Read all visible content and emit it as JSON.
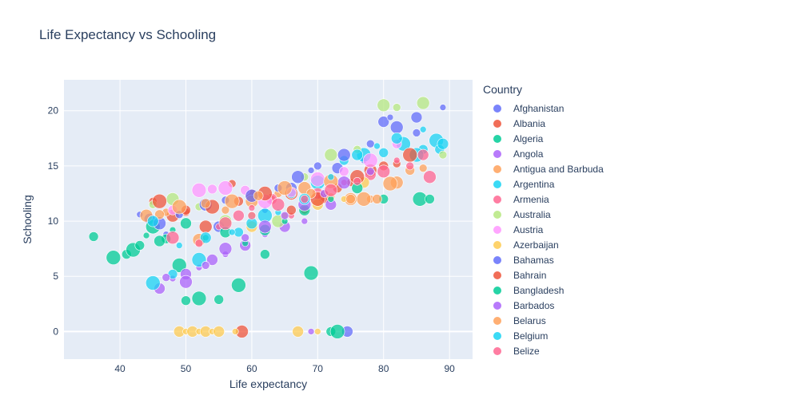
{
  "chart_data": {
    "type": "scatter",
    "title": "Life Expectancy vs Schooling",
    "xlabel": "Life expectancy",
    "ylabel": "Schooling",
    "xlim": [
      31.5,
      93.5
    ],
    "ylim": [
      -2.5,
      22.8
    ],
    "xticks": [
      40,
      50,
      60,
      70,
      80,
      90
    ],
    "yticks": [
      0,
      5,
      10,
      15,
      20
    ],
    "grid": true,
    "legend_title": "Country",
    "legend_position": "right",
    "plot_bg": "#e5ecf6",
    "series": [
      {
        "name": "Afghanistan",
        "color": "#636efa",
        "points": [
          [
            43,
            10.6
          ],
          [
            44.5,
            10.2
          ],
          [
            47,
            8.8
          ],
          [
            55,
            9.5
          ],
          [
            62,
            11
          ],
          [
            66,
            13
          ],
          [
            69,
            14.6
          ],
          [
            73,
            14.8
          ],
          [
            77,
            15.5
          ],
          [
            80,
            19
          ],
          [
            81,
            19.4
          ],
          [
            85,
            19.4
          ],
          [
            89,
            20.3
          ],
          [
            74.5,
            0
          ]
        ]
      },
      {
        "name": "Albania",
        "color": "#ef553b",
        "points": [
          [
            45,
            11.8
          ],
          [
            48,
            10.5
          ],
          [
            50,
            10.8
          ],
          [
            53,
            9.5
          ],
          [
            57,
            13.4
          ],
          [
            60,
            12.3
          ],
          [
            63,
            12
          ],
          [
            66,
            12.5
          ],
          [
            68,
            11
          ],
          [
            71,
            12.2
          ],
          [
            75,
            13.5
          ],
          [
            78,
            14.6
          ],
          [
            82,
            15.2
          ],
          [
            58.5,
            0
          ]
        ]
      },
      {
        "name": "Algeria",
        "color": "#00cc96",
        "points": [
          [
            36,
            8.6
          ],
          [
            39,
            6.7
          ],
          [
            41,
            7
          ],
          [
            42,
            7.4
          ],
          [
            43,
            7.8
          ],
          [
            45,
            9.5
          ],
          [
            47,
            8.4
          ],
          [
            49,
            6
          ],
          [
            50,
            2.8
          ],
          [
            52,
            3
          ],
          [
            55,
            2.9
          ],
          [
            58,
            4.2
          ],
          [
            62,
            7
          ],
          [
            69,
            5.3
          ],
          [
            72,
            0
          ],
          [
            73,
            0
          ],
          [
            80,
            12
          ],
          [
            85.5,
            12
          ],
          [
            87,
            12
          ]
        ]
      },
      {
        "name": "Angola",
        "color": "#ab63fa",
        "points": [
          [
            46,
            3.9
          ],
          [
            48,
            4.8
          ],
          [
            50,
            5.2
          ],
          [
            52,
            5.8
          ],
          [
            54,
            6.5
          ],
          [
            56,
            7
          ],
          [
            59,
            7.8
          ],
          [
            62,
            8.8
          ],
          [
            65,
            9.5
          ],
          [
            68,
            10
          ],
          [
            72,
            11.5
          ],
          [
            69,
            0
          ]
        ]
      },
      {
        "name": "Antigua and Barbuda",
        "color": "#ffa15a",
        "points": [
          [
            44,
            10.5
          ],
          [
            47,
            10.8
          ],
          [
            52,
            8.3
          ],
          [
            56,
            11
          ],
          [
            60,
            11.8
          ],
          [
            64,
            12.5
          ],
          [
            68,
            13
          ],
          [
            72,
            12.2
          ],
          [
            75,
            12
          ],
          [
            78,
            12
          ],
          [
            82,
            13.5
          ],
          [
            86,
            14.8
          ]
        ]
      },
      {
        "name": "Argentina",
        "color": "#19d3f3",
        "points": [
          [
            45,
            4.4
          ],
          [
            48,
            5.2
          ],
          [
            52,
            6.5
          ],
          [
            58,
            9
          ],
          [
            62,
            10.5
          ],
          [
            66,
            12.5
          ],
          [
            70,
            13.5
          ],
          [
            74,
            15.5
          ],
          [
            77,
            16
          ],
          [
            80,
            16.2
          ],
          [
            83,
            17
          ],
          [
            86,
            16.5
          ],
          [
            88,
            17.3
          ],
          [
            88.5,
            16.5
          ],
          [
            85,
            16
          ]
        ]
      },
      {
        "name": "Armenia",
        "color": "#ff6692",
        "points": [
          [
            55,
            9.5
          ],
          [
            58,
            10.5
          ],
          [
            60,
            11.2
          ],
          [
            63,
            12
          ],
          [
            66,
            10.5
          ],
          [
            70,
            12.5
          ],
          [
            74,
            13.5
          ],
          [
            78,
            14.2
          ],
          [
            82,
            15.5
          ],
          [
            86,
            16
          ]
        ]
      },
      {
        "name": "Australia",
        "color": "#b6e880",
        "points": [
          [
            45,
            11.5
          ],
          [
            48,
            12
          ],
          [
            52,
            11.3
          ],
          [
            56,
            10
          ],
          [
            60,
            10.5
          ],
          [
            64,
            10
          ],
          [
            68,
            14
          ],
          [
            72,
            16
          ],
          [
            76,
            16.5
          ],
          [
            80,
            20.5
          ],
          [
            82,
            20.3
          ],
          [
            86,
            20.7
          ],
          [
            89,
            16
          ]
        ]
      },
      {
        "name": "Austria",
        "color": "#ff97ff",
        "points": [
          [
            48,
            11
          ],
          [
            52,
            12.8
          ],
          [
            54,
            12.9
          ],
          [
            56,
            13
          ],
          [
            59,
            12.8
          ],
          [
            62,
            11.8
          ],
          [
            66,
            12.6
          ],
          [
            70,
            13.8
          ],
          [
            74,
            14.5
          ],
          [
            78,
            15.5
          ],
          [
            82,
            17
          ]
        ]
      },
      {
        "name": "Azerbaijan",
        "color": "#fecb52",
        "points": [
          [
            49,
            0
          ],
          [
            50,
            0
          ],
          [
            51,
            0
          ],
          [
            52,
            0
          ],
          [
            53,
            0
          ],
          [
            54,
            0
          ],
          [
            55,
            0
          ],
          [
            57.5,
            0
          ],
          [
            67,
            0
          ],
          [
            70,
            0
          ],
          [
            60,
            9.5
          ],
          [
            65,
            10.5
          ],
          [
            70,
            11.5
          ],
          [
            74,
            12
          ],
          [
            77,
            13.5
          ]
        ]
      },
      {
        "name": "Bahamas",
        "color": "#636efa",
        "points": [
          [
            46,
            9.8
          ],
          [
            49,
            10.6
          ],
          [
            53,
            11.5
          ],
          [
            56,
            11.9
          ],
          [
            60,
            12.3
          ],
          [
            64,
            13
          ],
          [
            67,
            14
          ],
          [
            70,
            15
          ],
          [
            74,
            16
          ],
          [
            78,
            17
          ],
          [
            82,
            18.5
          ],
          [
            85,
            18
          ]
        ]
      },
      {
        "name": "Bahrain",
        "color": "#ef553b",
        "points": [
          [
            46,
            11.8
          ],
          [
            50,
            11
          ],
          [
            54,
            11.3
          ],
          [
            58,
            11.8
          ],
          [
            62,
            12.5
          ],
          [
            66,
            11
          ],
          [
            70,
            12
          ],
          [
            73,
            13
          ],
          [
            76,
            14
          ],
          [
            80,
            15
          ],
          [
            84,
            16
          ]
        ]
      },
      {
        "name": "Bangladesh",
        "color": "#00cc96",
        "points": [
          [
            44,
            8.7
          ],
          [
            46,
            8.2
          ],
          [
            48,
            9.2
          ],
          [
            50,
            9.8
          ],
          [
            53,
            8.5
          ],
          [
            56,
            9
          ],
          [
            59,
            8
          ],
          [
            62,
            9.2
          ],
          [
            65,
            10
          ],
          [
            68,
            11
          ],
          [
            72,
            12
          ],
          [
            76,
            13
          ]
        ]
      },
      {
        "name": "Barbados",
        "color": "#ab63fa",
        "points": [
          [
            47,
            4.9
          ],
          [
            50,
            4.5
          ],
          [
            53,
            6
          ],
          [
            56,
            7.5
          ],
          [
            59,
            8.5
          ],
          [
            62,
            9.5
          ],
          [
            65,
            10.5
          ],
          [
            68,
            11.5
          ],
          [
            71,
            12.5
          ],
          [
            74,
            13.5
          ],
          [
            78,
            14.5
          ]
        ]
      },
      {
        "name": "Belarus",
        "color": "#ffa15a",
        "points": [
          [
            46,
            10.6
          ],
          [
            49,
            11.3
          ],
          [
            53,
            11.6
          ],
          [
            57,
            11.8
          ],
          [
            61,
            12.3
          ],
          [
            65,
            13
          ],
          [
            69,
            12.5
          ],
          [
            72,
            13.6
          ],
          [
            75,
            12
          ],
          [
            77,
            12
          ],
          [
            79,
            12
          ],
          [
            81,
            13.4
          ],
          [
            84,
            14.6
          ]
        ]
      },
      {
        "name": "Belgium",
        "color": "#19d3f3",
        "points": [
          [
            45,
            10
          ],
          [
            49,
            7.8
          ],
          [
            53,
            8.5
          ],
          [
            57,
            9
          ],
          [
            60,
            9.8
          ],
          [
            64,
            10.8
          ],
          [
            68,
            12
          ],
          [
            72,
            14
          ],
          [
            76,
            16
          ],
          [
            79,
            16.8
          ],
          [
            82,
            17.5
          ],
          [
            86,
            18.3
          ],
          [
            89,
            17
          ]
        ]
      },
      {
        "name": "Belize",
        "color": "#ff6692",
        "points": [
          [
            48,
            8.5
          ],
          [
            52,
            8
          ],
          [
            56,
            9.8
          ],
          [
            60,
            10.5
          ],
          [
            64,
            11.5
          ],
          [
            68,
            12
          ],
          [
            72,
            12.8
          ],
          [
            76,
            13.6
          ],
          [
            80,
            14.5
          ],
          [
            84,
            15
          ],
          [
            87,
            14
          ]
        ]
      }
    ]
  }
}
